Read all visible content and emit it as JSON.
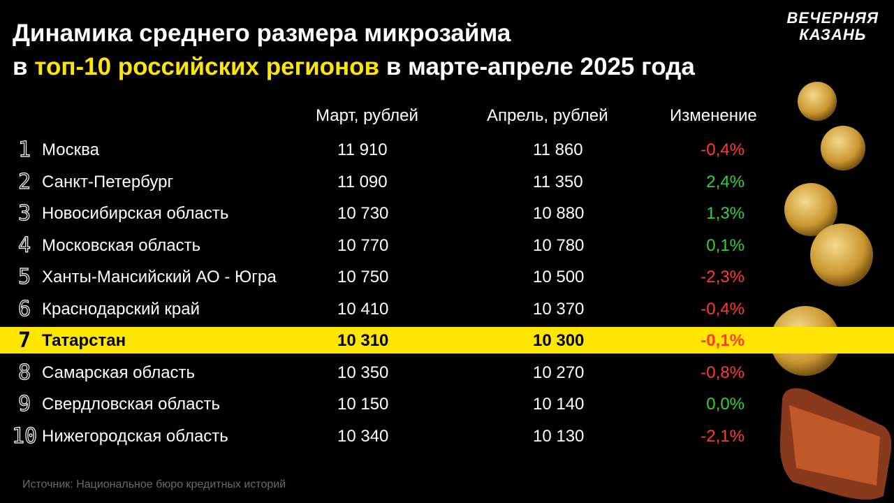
{
  "header": {
    "title_line1": "Динамика среднего размера микрозайма",
    "title_line2_start": "в",
    "title_line2_highlight": "топ-10 российских регионов",
    "title_line2_end": "в марте-апреле 2025 года",
    "logo_line1": "ВЕЧЕРНЯЯ",
    "logo_line2": "КАЗАНЬ"
  },
  "table": {
    "columns": [
      "Март, рублей",
      "Апрель, рублей",
      "Изменение"
    ],
    "rows": [
      {
        "rank": "1",
        "region": "Москва",
        "march": "11 910",
        "april": "11 860",
        "change": "-0,4%",
        "change_color": "#ff3b30"
      },
      {
        "rank": "2",
        "region": "Санкт-Петербург",
        "march": "11 090",
        "april": "11 350",
        "change": "2,4%",
        "change_color": "#34d134"
      },
      {
        "rank": "3",
        "region": "Новосибирская область",
        "march": "10 730",
        "april": "10 880",
        "change": "1,3%",
        "change_color": "#34d134"
      },
      {
        "rank": "4",
        "region": "Московская область",
        "march": "10 770",
        "april": "10 780",
        "change": "0,1%",
        "change_color": "#34d134"
      },
      {
        "rank": "5",
        "region": "Ханты-Мансийский АО - Югра",
        "march": "10 750",
        "april": "10 500",
        "change": "-2,3%",
        "change_color": "#ff3b30"
      },
      {
        "rank": "6",
        "region": "Краснодарский край",
        "march": "10 410",
        "april": "10 370",
        "change": "-0,4%",
        "change_color": "#ff3b30"
      },
      {
        "rank": "7",
        "region": "Татарстан",
        "march": "10 310",
        "april": "10 300",
        "change": "-0,1%",
        "change_color": "#ff3b30",
        "highlight": true
      },
      {
        "rank": "8",
        "region": "Самарская область",
        "march": "10 350",
        "april": "10 270",
        "change": "-0,8%",
        "change_color": "#ff3b30"
      },
      {
        "rank": "9",
        "region": "Свердловская область",
        "march": "10 150",
        "april": "10 140",
        "change": "0,0%",
        "change_color": "#34d134"
      },
      {
        "rank": "10",
        "region": "Нижегородская область",
        "march": "10 340",
        "april": "10 130",
        "change": "-2,1%",
        "change_color": "#ff3b30"
      }
    ]
  },
  "footer": {
    "source": "Источник: Национальное бюро кредитных историй"
  }
}
